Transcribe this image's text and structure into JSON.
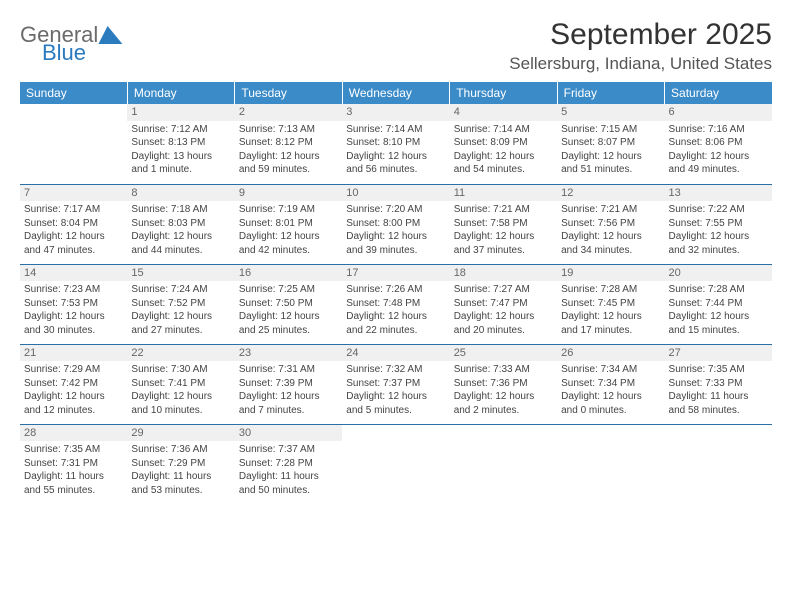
{
  "logo": {
    "text1": "General",
    "text2": "Blue"
  },
  "title": "September 2025",
  "location": "Sellersburg, Indiana, United States",
  "header_color": "#3b8bc9",
  "row_border_color": "#2b6fa8",
  "daynum_bg": "#f0f0f0",
  "days": [
    "Sunday",
    "Monday",
    "Tuesday",
    "Wednesday",
    "Thursday",
    "Friday",
    "Saturday"
  ],
  "weeks": [
    [
      {
        "n": "",
        "sr": "",
        "ss": "",
        "d1": "",
        "d2": ""
      },
      {
        "n": "1",
        "sr": "Sunrise: 7:12 AM",
        "ss": "Sunset: 8:13 PM",
        "d1": "Daylight: 13 hours",
        "d2": "and 1 minute."
      },
      {
        "n": "2",
        "sr": "Sunrise: 7:13 AM",
        "ss": "Sunset: 8:12 PM",
        "d1": "Daylight: 12 hours",
        "d2": "and 59 minutes."
      },
      {
        "n": "3",
        "sr": "Sunrise: 7:14 AM",
        "ss": "Sunset: 8:10 PM",
        "d1": "Daylight: 12 hours",
        "d2": "and 56 minutes."
      },
      {
        "n": "4",
        "sr": "Sunrise: 7:14 AM",
        "ss": "Sunset: 8:09 PM",
        "d1": "Daylight: 12 hours",
        "d2": "and 54 minutes."
      },
      {
        "n": "5",
        "sr": "Sunrise: 7:15 AM",
        "ss": "Sunset: 8:07 PM",
        "d1": "Daylight: 12 hours",
        "d2": "and 51 minutes."
      },
      {
        "n": "6",
        "sr": "Sunrise: 7:16 AM",
        "ss": "Sunset: 8:06 PM",
        "d1": "Daylight: 12 hours",
        "d2": "and 49 minutes."
      }
    ],
    [
      {
        "n": "7",
        "sr": "Sunrise: 7:17 AM",
        "ss": "Sunset: 8:04 PM",
        "d1": "Daylight: 12 hours",
        "d2": "and 47 minutes."
      },
      {
        "n": "8",
        "sr": "Sunrise: 7:18 AM",
        "ss": "Sunset: 8:03 PM",
        "d1": "Daylight: 12 hours",
        "d2": "and 44 minutes."
      },
      {
        "n": "9",
        "sr": "Sunrise: 7:19 AM",
        "ss": "Sunset: 8:01 PM",
        "d1": "Daylight: 12 hours",
        "d2": "and 42 minutes."
      },
      {
        "n": "10",
        "sr": "Sunrise: 7:20 AM",
        "ss": "Sunset: 8:00 PM",
        "d1": "Daylight: 12 hours",
        "d2": "and 39 minutes."
      },
      {
        "n": "11",
        "sr": "Sunrise: 7:21 AM",
        "ss": "Sunset: 7:58 PM",
        "d1": "Daylight: 12 hours",
        "d2": "and 37 minutes."
      },
      {
        "n": "12",
        "sr": "Sunrise: 7:21 AM",
        "ss": "Sunset: 7:56 PM",
        "d1": "Daylight: 12 hours",
        "d2": "and 34 minutes."
      },
      {
        "n": "13",
        "sr": "Sunrise: 7:22 AM",
        "ss": "Sunset: 7:55 PM",
        "d1": "Daylight: 12 hours",
        "d2": "and 32 minutes."
      }
    ],
    [
      {
        "n": "14",
        "sr": "Sunrise: 7:23 AM",
        "ss": "Sunset: 7:53 PM",
        "d1": "Daylight: 12 hours",
        "d2": "and 30 minutes."
      },
      {
        "n": "15",
        "sr": "Sunrise: 7:24 AM",
        "ss": "Sunset: 7:52 PM",
        "d1": "Daylight: 12 hours",
        "d2": "and 27 minutes."
      },
      {
        "n": "16",
        "sr": "Sunrise: 7:25 AM",
        "ss": "Sunset: 7:50 PM",
        "d1": "Daylight: 12 hours",
        "d2": "and 25 minutes."
      },
      {
        "n": "17",
        "sr": "Sunrise: 7:26 AM",
        "ss": "Sunset: 7:48 PM",
        "d1": "Daylight: 12 hours",
        "d2": "and 22 minutes."
      },
      {
        "n": "18",
        "sr": "Sunrise: 7:27 AM",
        "ss": "Sunset: 7:47 PM",
        "d1": "Daylight: 12 hours",
        "d2": "and 20 minutes."
      },
      {
        "n": "19",
        "sr": "Sunrise: 7:28 AM",
        "ss": "Sunset: 7:45 PM",
        "d1": "Daylight: 12 hours",
        "d2": "and 17 minutes."
      },
      {
        "n": "20",
        "sr": "Sunrise: 7:28 AM",
        "ss": "Sunset: 7:44 PM",
        "d1": "Daylight: 12 hours",
        "d2": "and 15 minutes."
      }
    ],
    [
      {
        "n": "21",
        "sr": "Sunrise: 7:29 AM",
        "ss": "Sunset: 7:42 PM",
        "d1": "Daylight: 12 hours",
        "d2": "and 12 minutes."
      },
      {
        "n": "22",
        "sr": "Sunrise: 7:30 AM",
        "ss": "Sunset: 7:41 PM",
        "d1": "Daylight: 12 hours",
        "d2": "and 10 minutes."
      },
      {
        "n": "23",
        "sr": "Sunrise: 7:31 AM",
        "ss": "Sunset: 7:39 PM",
        "d1": "Daylight: 12 hours",
        "d2": "and 7 minutes."
      },
      {
        "n": "24",
        "sr": "Sunrise: 7:32 AM",
        "ss": "Sunset: 7:37 PM",
        "d1": "Daylight: 12 hours",
        "d2": "and 5 minutes."
      },
      {
        "n": "25",
        "sr": "Sunrise: 7:33 AM",
        "ss": "Sunset: 7:36 PM",
        "d1": "Daylight: 12 hours",
        "d2": "and 2 minutes."
      },
      {
        "n": "26",
        "sr": "Sunrise: 7:34 AM",
        "ss": "Sunset: 7:34 PM",
        "d1": "Daylight: 12 hours",
        "d2": "and 0 minutes."
      },
      {
        "n": "27",
        "sr": "Sunrise: 7:35 AM",
        "ss": "Sunset: 7:33 PM",
        "d1": "Daylight: 11 hours",
        "d2": "and 58 minutes."
      }
    ],
    [
      {
        "n": "28",
        "sr": "Sunrise: 7:35 AM",
        "ss": "Sunset: 7:31 PM",
        "d1": "Daylight: 11 hours",
        "d2": "and 55 minutes."
      },
      {
        "n": "29",
        "sr": "Sunrise: 7:36 AM",
        "ss": "Sunset: 7:29 PM",
        "d1": "Daylight: 11 hours",
        "d2": "and 53 minutes."
      },
      {
        "n": "30",
        "sr": "Sunrise: 7:37 AM",
        "ss": "Sunset: 7:28 PM",
        "d1": "Daylight: 11 hours",
        "d2": "and 50 minutes."
      },
      {
        "n": "",
        "sr": "",
        "ss": "",
        "d1": "",
        "d2": ""
      },
      {
        "n": "",
        "sr": "",
        "ss": "",
        "d1": "",
        "d2": ""
      },
      {
        "n": "",
        "sr": "",
        "ss": "",
        "d1": "",
        "d2": ""
      },
      {
        "n": "",
        "sr": "",
        "ss": "",
        "d1": "",
        "d2": ""
      }
    ]
  ]
}
